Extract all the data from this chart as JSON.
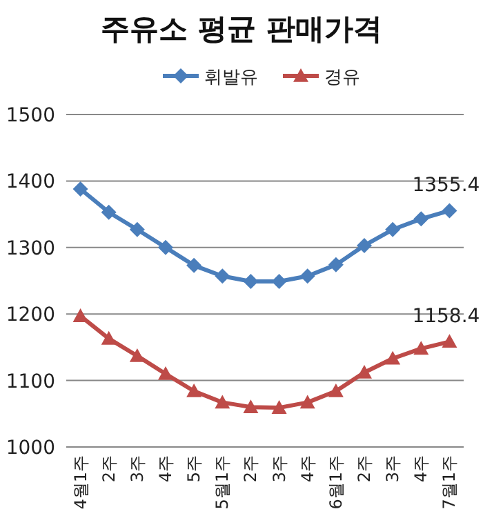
{
  "chart_data": {
    "type": "line",
    "title": "주유소 평균 판매가격",
    "categories": [
      "4월1주",
      "2주",
      "3주",
      "4주",
      "5주",
      "5월1주",
      "2주",
      "3주",
      "4주",
      "6월1주",
      "2주",
      "3주",
      "4주",
      "7월1주"
    ],
    "series": [
      {
        "name": "휘발유",
        "color": "#4a7ebb",
        "marker": "diamond",
        "values": [
          1388,
          1353,
          1327,
          1300,
          1273,
          1257,
          1249,
          1249,
          1257,
          1274,
          1303,
          1327,
          1343,
          1355.4
        ],
        "value_labels": [
          null,
          null,
          null,
          null,
          null,
          null,
          null,
          null,
          null,
          null,
          null,
          null,
          null,
          "1355.4"
        ]
      },
      {
        "name": "경유",
        "color": "#be4b48",
        "marker": "triangle",
        "values": [
          1197,
          1163,
          1137,
          1110,
          1084,
          1067,
          1060,
          1059,
          1067,
          1084,
          1112,
          1133,
          1148,
          1158.4
        ],
        "value_labels": [
          null,
          null,
          null,
          null,
          null,
          null,
          null,
          null,
          null,
          null,
          null,
          null,
          null,
          "1158.4"
        ]
      }
    ],
    "ylim": [
      1000,
      1500
    ],
    "yticks": [
      1000,
      1100,
      1200,
      1300,
      1400,
      1500
    ],
    "grid": "y",
    "legend": "top",
    "line_style": "solid"
  }
}
